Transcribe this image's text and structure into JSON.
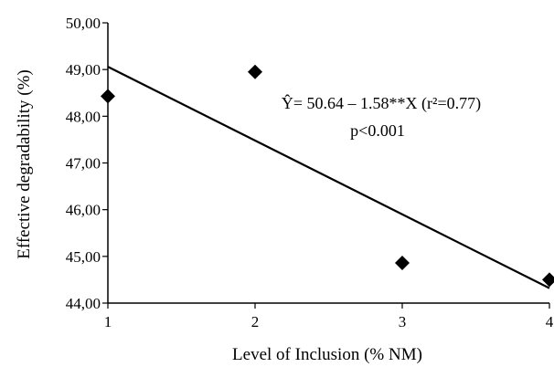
{
  "chart_data": {
    "type": "scatter",
    "title": "",
    "xlabel": "Level of Inclusion (% NM)",
    "ylabel": "Effective degradability (%)",
    "xlim": [
      1,
      4
    ],
    "ylim": [
      44,
      50
    ],
    "x_ticks": [
      "1",
      "2",
      "3",
      "4"
    ],
    "y_ticks": [
      "44,00",
      "45,00",
      "46,00",
      "47,00",
      "48,00",
      "49,00",
      "50,00"
    ],
    "grid": false,
    "legend": "none",
    "marker": "diamond",
    "marker_color": "#000000",
    "series": [
      {
        "x": [
          1,
          2,
          3,
          4
        ],
        "y": [
          48.43,
          48.95,
          44.86,
          44.5
        ]
      }
    ],
    "trendline": {
      "intercept": 50.64,
      "slope": -1.58,
      "color": "#000000"
    },
    "annotations": [
      "Ŷ= 50.64 – 1.58**X (r²=0.77)",
      "p<0.001"
    ]
  }
}
